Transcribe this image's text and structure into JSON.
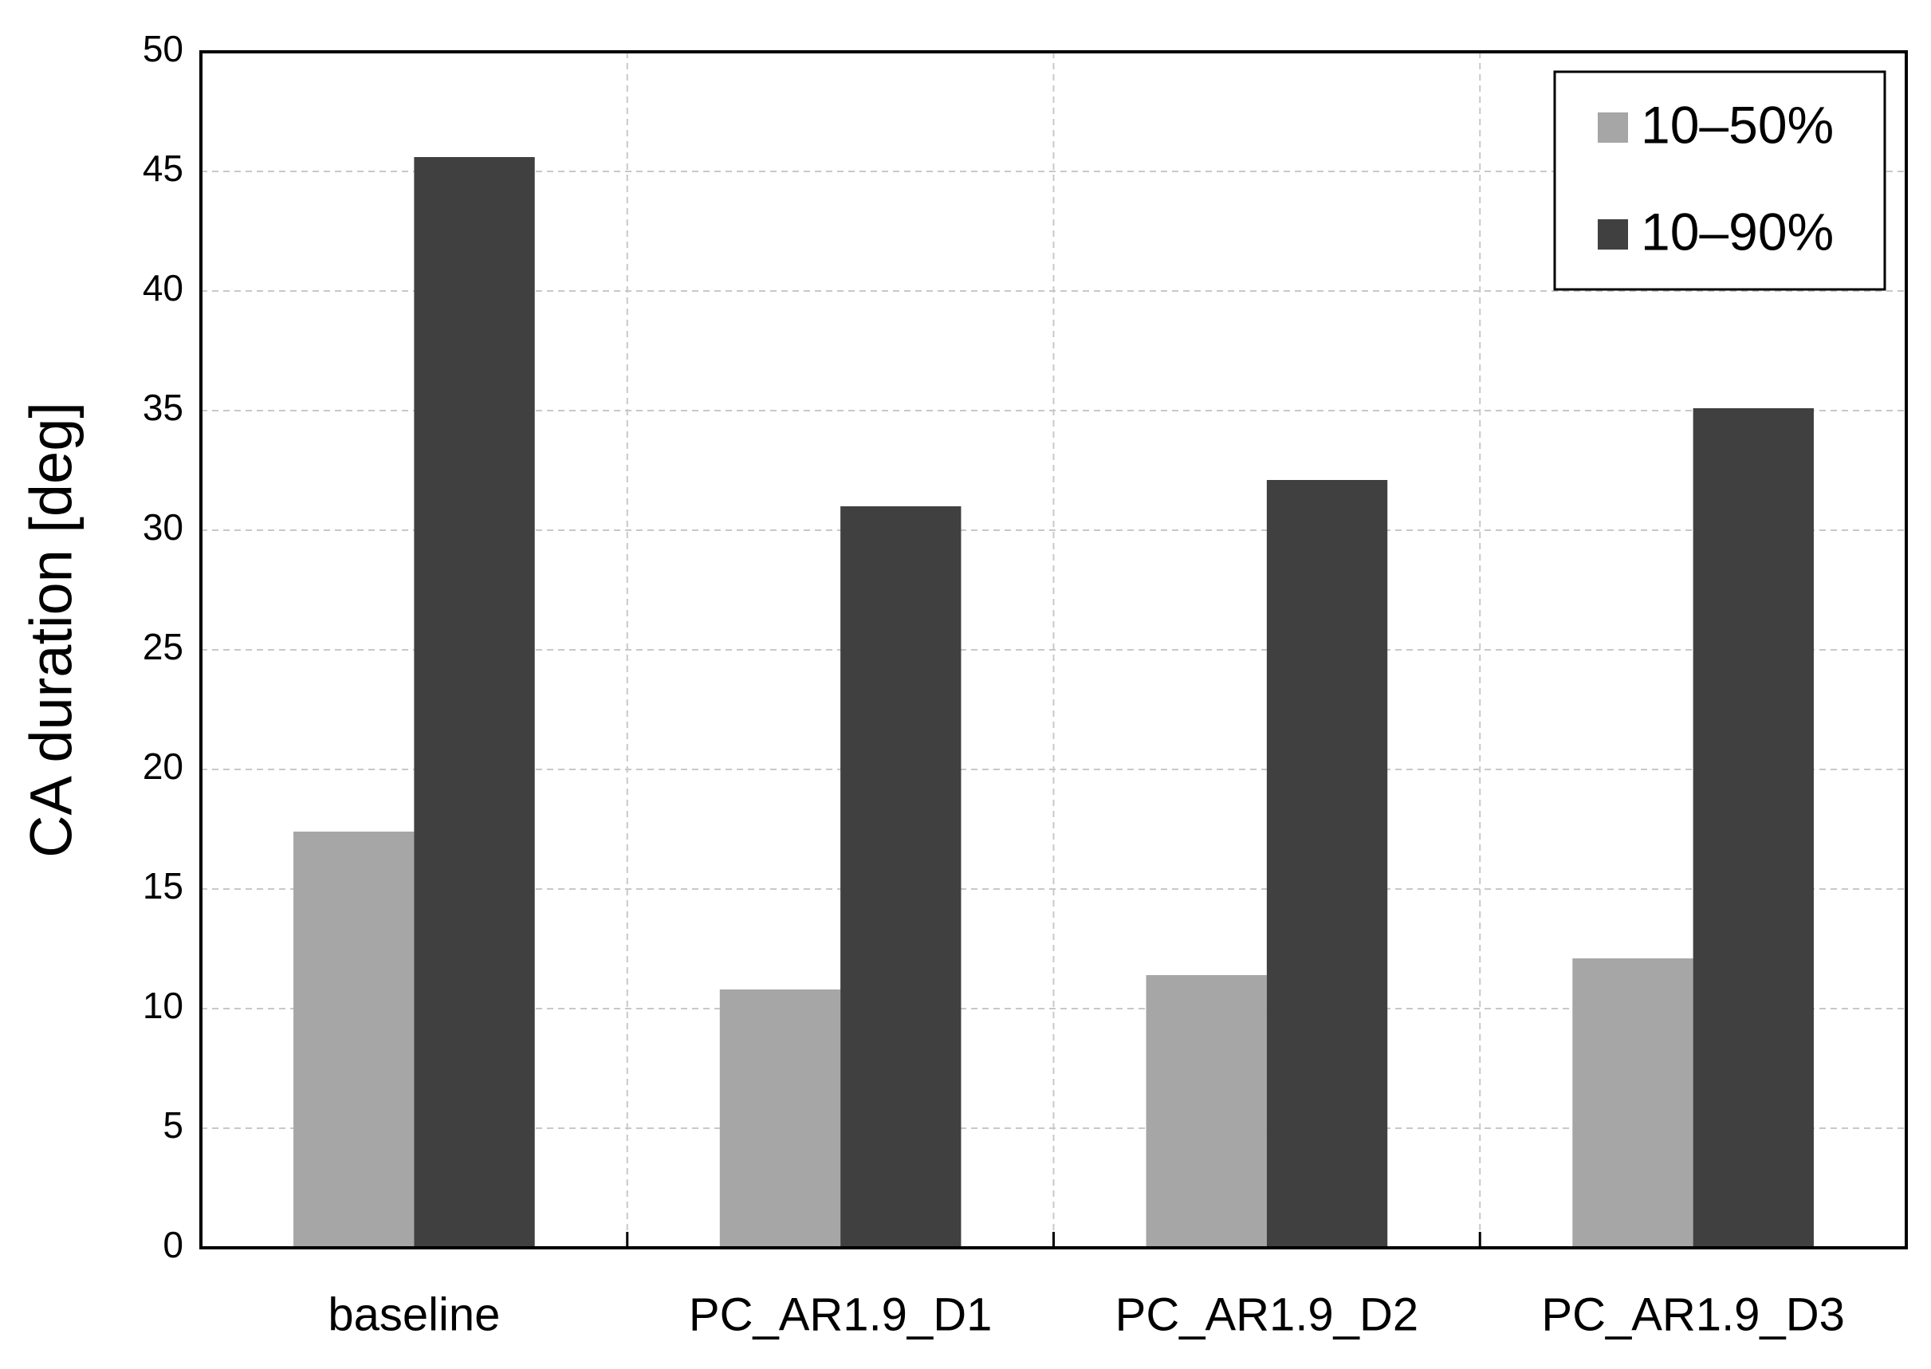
{
  "chart_data": {
    "type": "bar",
    "y_label": "CA duration [deg]",
    "categories": [
      "baseline",
      "PC_AR1.9_D1",
      "PC_AR1.9_D2",
      "PC_AR1.9_D3"
    ],
    "series": [
      {
        "name": "10–50%",
        "color": "#a6a6a6",
        "values": [
          17.4,
          10.8,
          11.4,
          12.1
        ]
      },
      {
        "name": "10–90%",
        "color": "#404040",
        "values": [
          45.6,
          31.0,
          32.1,
          35.1
        ]
      }
    ],
    "ylim": [
      0,
      50
    ],
    "yticks": [
      0,
      5,
      10,
      15,
      20,
      25,
      30,
      35,
      40,
      45,
      50
    ],
    "grid": true,
    "legend": "upper right"
  }
}
